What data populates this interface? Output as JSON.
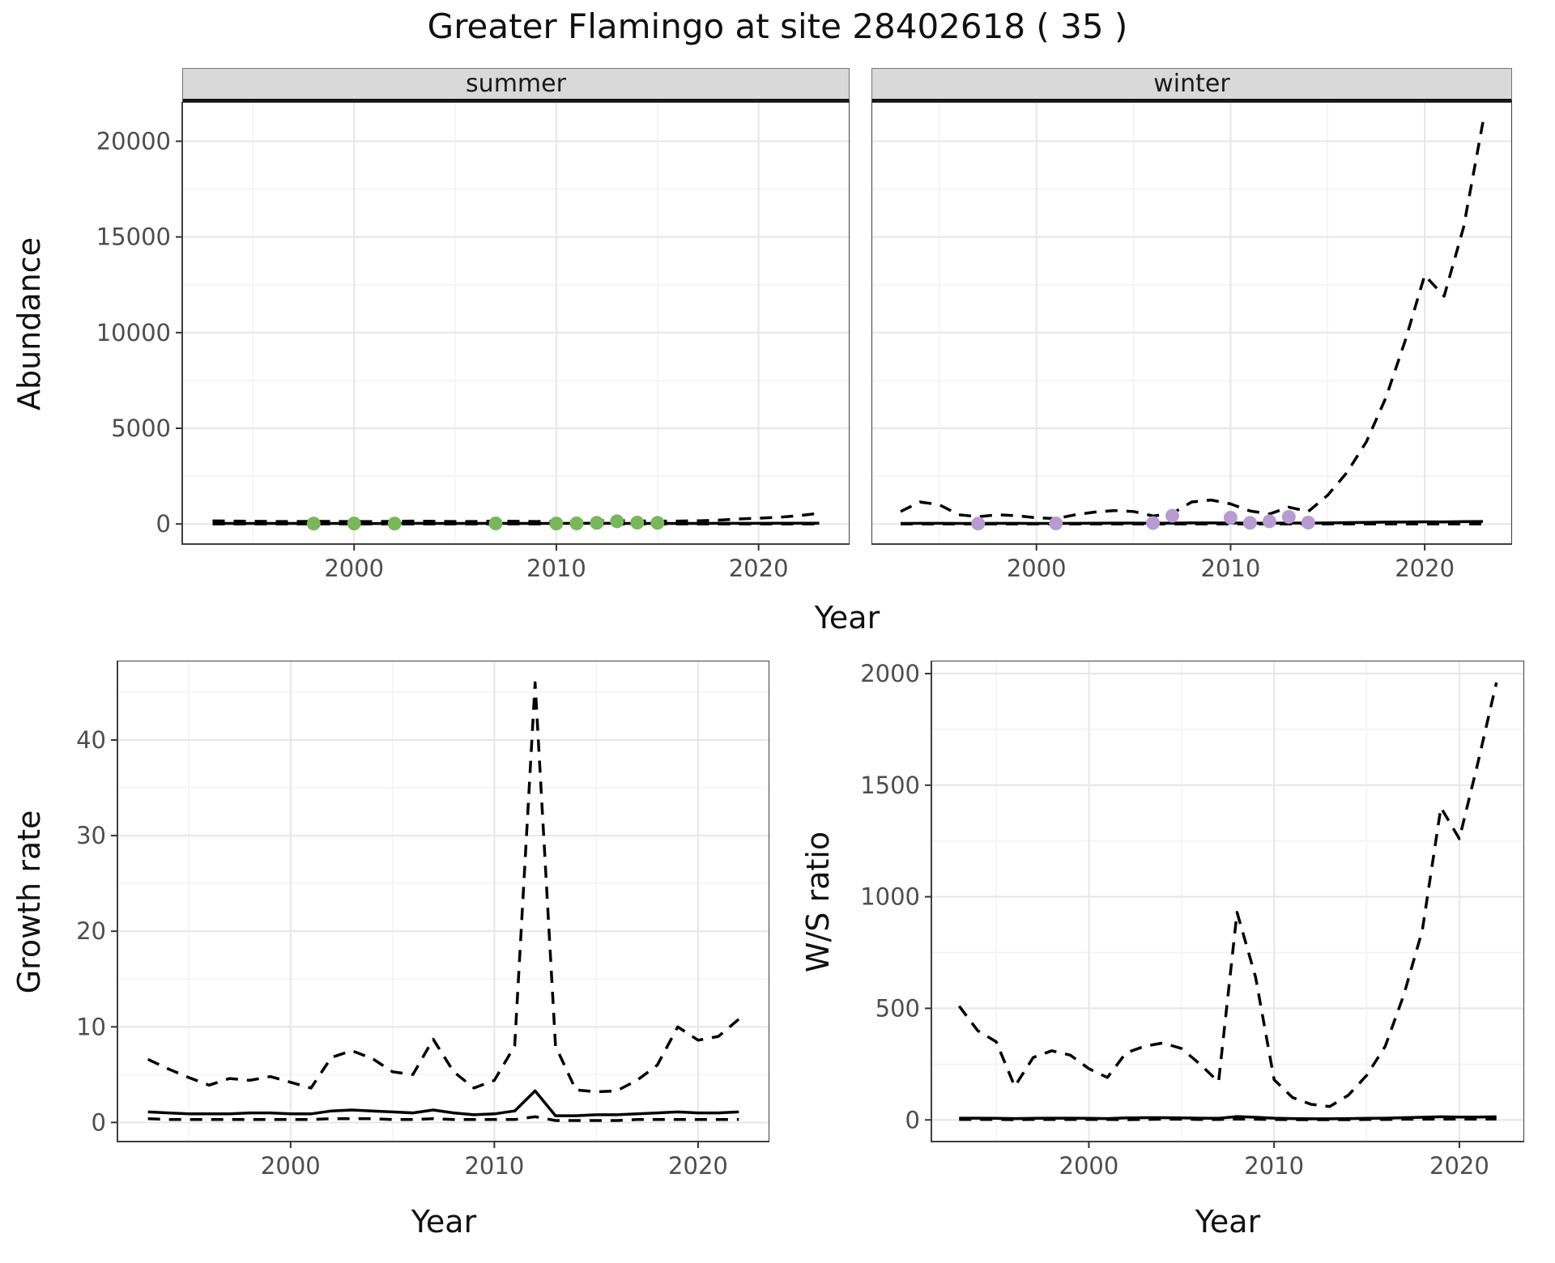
{
  "title": "Greater Flamingo at site 28402618 ( 35 )",
  "facets": {
    "summer": "summer",
    "winter": "winter"
  },
  "axes": {
    "abundance_label": "Abundance",
    "year_label": "Year",
    "growth_label": "Growth rate",
    "ws_label": "W/S ratio"
  },
  "colors": {
    "summer_point": "#78b75a",
    "winter_point": "#b79cd2",
    "line": "#000000",
    "strip_bg": "#d9d9d9",
    "grid_major": "#e8e8e8",
    "grid_minor": "#f3f3f3",
    "panel_border": "#404040",
    "tick_text": "#4d4d4d"
  },
  "chart_data": [
    {
      "id": "abundance-summer",
      "type": "line",
      "facet": "summer",
      "xlabel": "Year",
      "ylabel": "Abundance",
      "x": [
        1993,
        1994,
        1995,
        1996,
        1997,
        1998,
        1999,
        2000,
        2001,
        2002,
        2003,
        2004,
        2005,
        2006,
        2007,
        2008,
        2009,
        2010,
        2011,
        2012,
        2013,
        2014,
        2015,
        2016,
        2017,
        2018,
        2019,
        2020,
        2021,
        2022,
        2023
      ],
      "series": [
        {
          "name": "upper_ci",
          "style": "dashed",
          "values": [
            160,
            150,
            140,
            130,
            130,
            140,
            130,
            130,
            120,
            140,
            150,
            140,
            130,
            130,
            150,
            140,
            130,
            140,
            150,
            170,
            180,
            160,
            150,
            150,
            170,
            200,
            260,
            300,
            350,
            430,
            560
          ]
        },
        {
          "name": "lower_ci",
          "style": "dashed",
          "values": [
            5,
            5,
            5,
            5,
            5,
            5,
            5,
            5,
            5,
            5,
            5,
            5,
            5,
            5,
            5,
            5,
            5,
            5,
            5,
            5,
            5,
            5,
            5,
            5,
            5,
            5,
            5,
            5,
            5,
            5,
            5
          ]
        },
        {
          "name": "median",
          "style": "solid",
          "values": [
            30,
            30,
            28,
            28,
            28,
            30,
            28,
            28,
            26,
            30,
            32,
            30,
            28,
            28,
            32,
            30,
            28,
            30,
            32,
            40,
            30,
            28,
            28,
            28,
            30,
            32,
            34,
            34,
            36,
            38,
            40
          ]
        }
      ],
      "points": {
        "name": "observed_counts",
        "color_key": "summer_point",
        "x": [
          1998,
          2000,
          2002,
          2007,
          2010,
          2011,
          2012,
          2013,
          2014,
          2015
        ],
        "y": [
          20,
          25,
          20,
          30,
          25,
          30,
          60,
          140,
          70,
          60
        ]
      },
      "xlim": [
        1991.5,
        2024.5
      ],
      "ylim": [
        -1050,
        22050
      ],
      "xticks": [
        2000,
        2010,
        2020
      ],
      "yticks": [
        0,
        5000,
        10000,
        15000,
        20000
      ]
    },
    {
      "id": "abundance-winter",
      "type": "line",
      "facet": "winter",
      "xlabel": "Year",
      "ylabel": "Abundance",
      "x": [
        1993,
        1994,
        1995,
        1996,
        1997,
        1998,
        1999,
        2000,
        2001,
        2002,
        2003,
        2004,
        2005,
        2006,
        2007,
        2008,
        2009,
        2010,
        2011,
        2012,
        2013,
        2014,
        2015,
        2016,
        2017,
        2018,
        2019,
        2020,
        2021,
        2022,
        2023
      ],
      "series": [
        {
          "name": "upper_ci",
          "style": "dashed",
          "values": [
            650,
            1150,
            1000,
            480,
            380,
            480,
            430,
            320,
            280,
            480,
            620,
            700,
            650,
            420,
            550,
            1150,
            1250,
            1050,
            680,
            520,
            880,
            650,
            1500,
            2700,
            4300,
            6600,
            9600,
            13000,
            11900,
            15500,
            21000
          ]
        },
        {
          "name": "lower_ci",
          "style": "dashed",
          "values": [
            5,
            5,
            5,
            5,
            5,
            5,
            5,
            5,
            5,
            5,
            5,
            5,
            5,
            5,
            5,
            5,
            5,
            5,
            5,
            5,
            5,
            5,
            5,
            5,
            5,
            5,
            5,
            5,
            5,
            5,
            5
          ]
        },
        {
          "name": "median",
          "style": "solid",
          "values": [
            30,
            35,
            35,
            30,
            30,
            35,
            35,
            30,
            30,
            35,
            40,
            45,
            45,
            40,
            45,
            55,
            55,
            50,
            45,
            40,
            50,
            45,
            55,
            70,
            85,
            95,
            105,
            115,
            110,
            120,
            130
          ]
        }
      ],
      "points": {
        "name": "observed_counts",
        "color_key": "winter_point",
        "x": [
          1997,
          2001,
          2006,
          2007,
          2010,
          2011,
          2012,
          2013,
          2014
        ],
        "y": [
          20,
          30,
          50,
          430,
          330,
          60,
          140,
          370,
          70
        ]
      },
      "xlim": [
        1991.5,
        2024.5
      ],
      "ylim": [
        -1050,
        22050
      ],
      "xticks": [
        2000,
        2010,
        2020
      ],
      "yticks": [
        0,
        5000,
        10000,
        15000,
        20000
      ]
    },
    {
      "id": "growth-rate",
      "type": "line",
      "xlabel": "Year",
      "ylabel": "Growth rate",
      "x": [
        1993,
        1994,
        1995,
        1996,
        1997,
        1998,
        1999,
        2000,
        2001,
        2002,
        2003,
        2004,
        2005,
        2006,
        2007,
        2008,
        2009,
        2010,
        2011,
        2012,
        2013,
        2014,
        2015,
        2016,
        2017,
        2018,
        2019,
        2020,
        2021,
        2022
      ],
      "series": [
        {
          "name": "upper_ci",
          "style": "dashed",
          "values": [
            6.6,
            5.6,
            4.7,
            3.9,
            4.6,
            4.4,
            4.8,
            4.2,
            3.6,
            6.8,
            7.5,
            6.7,
            5.3,
            5.0,
            8.7,
            5.3,
            3.6,
            4.4,
            8.0,
            46.0,
            8.0,
            3.4,
            3.2,
            3.3,
            4.4,
            6.0,
            10.0,
            8.6,
            9.0,
            10.8
          ]
        },
        {
          "name": "lower_ci",
          "style": "dashed",
          "values": [
            0.4,
            0.3,
            0.3,
            0.3,
            0.3,
            0.3,
            0.3,
            0.3,
            0.3,
            0.4,
            0.4,
            0.4,
            0.3,
            0.3,
            0.4,
            0.3,
            0.3,
            0.3,
            0.3,
            0.6,
            0.2,
            0.2,
            0.2,
            0.2,
            0.3,
            0.3,
            0.3,
            0.3,
            0.3,
            0.3
          ]
        },
        {
          "name": "median",
          "style": "solid",
          "values": [
            1.1,
            1.0,
            0.9,
            0.9,
            0.9,
            1.0,
            1.0,
            0.9,
            0.9,
            1.2,
            1.3,
            1.2,
            1.1,
            1.0,
            1.3,
            1.0,
            0.8,
            0.9,
            1.2,
            3.3,
            0.7,
            0.7,
            0.8,
            0.8,
            0.9,
            1.0,
            1.1,
            1.0,
            1.0,
            1.1
          ]
        }
      ],
      "xlim": [
        1991.5,
        2023.5
      ],
      "ylim": [
        -2.0,
        48.3
      ],
      "xticks": [
        2000,
        2010,
        2020
      ],
      "yticks": [
        0,
        10,
        20,
        30,
        40
      ]
    },
    {
      "id": "ws-ratio",
      "type": "line",
      "xlabel": "Year",
      "ylabel": "W/S ratio",
      "x": [
        1993,
        1994,
        1995,
        1996,
        1997,
        1998,
        1999,
        2000,
        2001,
        2002,
        2003,
        2004,
        2005,
        2006,
        2007,
        2008,
        2009,
        2010,
        2011,
        2012,
        2013,
        2014,
        2015,
        2016,
        2017,
        2018,
        2019,
        2020,
        2021,
        2022
      ],
      "series": [
        {
          "name": "upper_ci",
          "style": "dashed",
          "values": [
            510,
            400,
            350,
            150,
            280,
            310,
            290,
            230,
            190,
            300,
            330,
            345,
            320,
            250,
            170,
            930,
            640,
            180,
            100,
            70,
            60,
            110,
            200,
            330,
            560,
            850,
            1400,
            1260,
            1600,
            1960
          ]
        },
        {
          "name": "lower_ci",
          "style": "dashed",
          "values": [
            2,
            2,
            2,
            1,
            2,
            2,
            2,
            2,
            2,
            1,
            2,
            3,
            3,
            2,
            2,
            4,
            3,
            2,
            1,
            1,
            1,
            1,
            2,
            2,
            3,
            3,
            4,
            4,
            4,
            4
          ]
        },
        {
          "name": "median",
          "style": "solid",
          "values": [
            8,
            8,
            7,
            6,
            7,
            8,
            8,
            7,
            6,
            9,
            10,
            10,
            9,
            8,
            7,
            15,
            12,
            8,
            6,
            5,
            5,
            6,
            7,
            8,
            10,
            12,
            14,
            13,
            13,
            14
          ]
        }
      ],
      "xlim": [
        1991.5,
        2023.5
      ],
      "ylim": [
        -97,
        2058
      ],
      "xticks": [
        2000,
        2010,
        2020
      ],
      "yticks": [
        0,
        500,
        1000,
        1500,
        2000
      ]
    }
  ]
}
